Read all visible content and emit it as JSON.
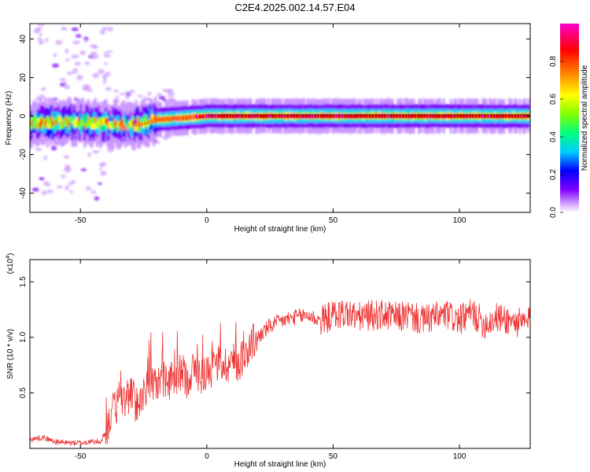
{
  "title": "C2E4.2025.002.14.57.E04",
  "chart_data": [
    {
      "type": "heatmap",
      "xlabel": "Height of straight line (km)",
      "ylabel": "Frequency (Hz)",
      "xlim": [
        -70,
        128
      ],
      "ylim": [
        -50,
        48
      ],
      "xticks": [
        -50,
        0,
        50,
        100
      ],
      "yticks": [
        -40,
        -20,
        0,
        20,
        40
      ],
      "colorbar": {
        "label": "Normalized spectral amplitude",
        "ticks": [
          "0.0",
          "0.2",
          "0.4",
          "0.6",
          "0.8"
        ],
        "tick_values": [
          0.0,
          0.2,
          0.4,
          0.6,
          0.8
        ],
        "range": [
          0,
          1
        ],
        "colors": [
          "#ffffff",
          "#cc99ff",
          "#8000ff",
          "#0000ff",
          "#00ccff",
          "#00ff80",
          "#80ff00",
          "#ffff00",
          "#ff8000",
          "#ff0000",
          "#ff00cc"
        ]
      },
      "ridge": {
        "x": [
          -70,
          -60,
          -50,
          -40,
          -30,
          -25,
          -20,
          -10,
          0,
          128
        ],
        "frequency": [
          -4,
          -3,
          -3,
          -4,
          -5,
          -4,
          -2,
          -1,
          0,
          0
        ]
      }
    },
    {
      "type": "line",
      "xlabel": "Height of straight line (km)",
      "ylabel": "SNR (10 * v/v)",
      "y_multiplier": "(x10",
      "y_multiplier_exp": "4",
      "y_multiplier_close": ")",
      "xlim": [
        -70,
        128
      ],
      "ylim": [
        0,
        1.7
      ],
      "xticks": [
        -50,
        0,
        50,
        100
      ],
      "yticks": [
        0.5,
        1.0,
        1.5
      ],
      "ytick_labels": [
        "0.5",
        "1.0",
        "1.5"
      ],
      "color": "#ee3333",
      "series": [
        {
          "x": [
            -70,
            -65,
            -60,
            -55,
            -50,
            -45,
            -42,
            -40,
            -38,
            -35,
            -32,
            -30,
            -28,
            -25,
            -22,
            -20,
            -18,
            -15,
            -12,
            -10,
            -8,
            -5,
            -2,
            0,
            3,
            5,
            8,
            10,
            12,
            15,
            18,
            20,
            25,
            30,
            35,
            40,
            45,
            50,
            55,
            60,
            65,
            70,
            75,
            80,
            85,
            90,
            95,
            100,
            105,
            110,
            115,
            120,
            125,
            128
          ],
          "y": [
            0.08,
            0.1,
            0.06,
            0.05,
            0.05,
            0.06,
            0.06,
            0.15,
            0.3,
            0.4,
            0.45,
            0.5,
            0.4,
            0.48,
            0.6,
            0.55,
            0.65,
            0.6,
            0.62,
            0.7,
            0.62,
            0.72,
            0.65,
            0.7,
            0.72,
            0.78,
            0.75,
            0.8,
            0.75,
            0.85,
            0.95,
            1.0,
            1.1,
            1.15,
            1.18,
            1.2,
            1.15,
            1.2,
            1.22,
            1.18,
            1.2,
            1.2,
            1.18,
            1.2,
            1.15,
            1.18,
            1.2,
            1.15,
            1.22,
            1.12,
            1.18,
            1.15,
            1.12,
            1.15
          ]
        }
      ]
    }
  ]
}
